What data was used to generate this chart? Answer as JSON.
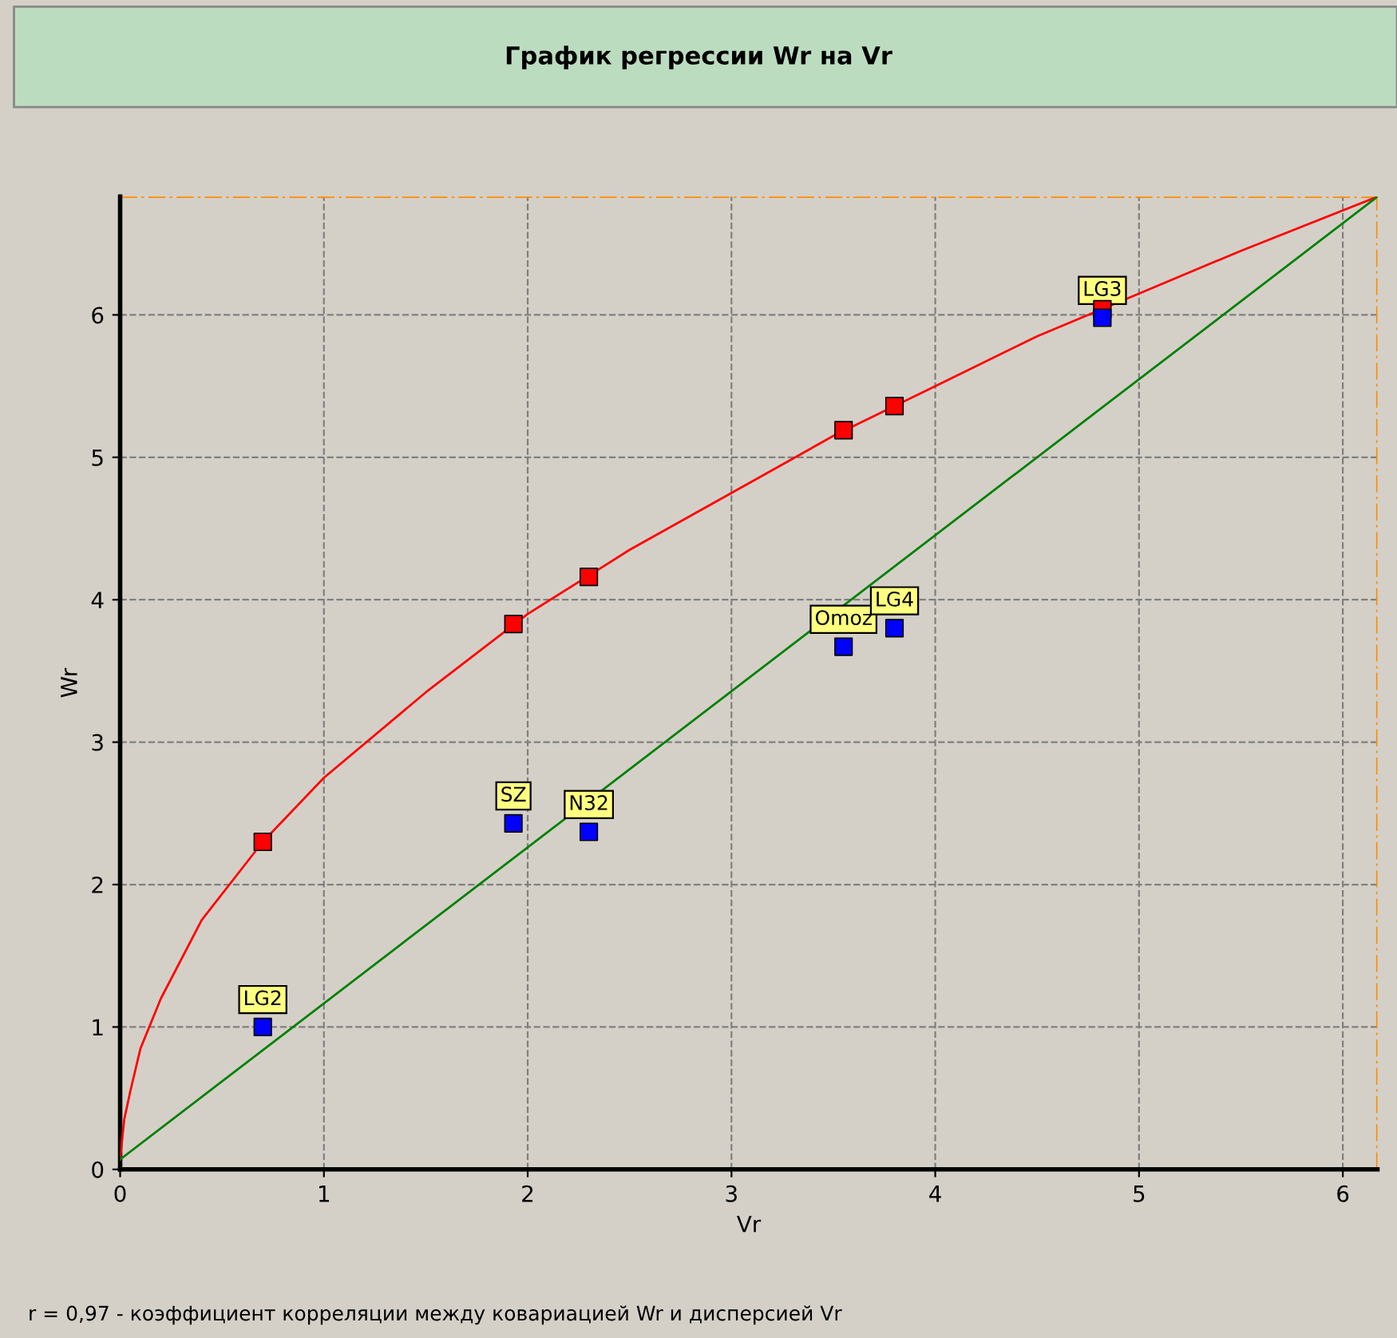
{
  "chart_data": {
    "type": "scatter",
    "title": "График регрессии Wr на Vr",
    "xlabel": "Vr",
    "ylabel": "Wr",
    "xlim": [
      0,
      6.17
    ],
    "ylim": [
      0,
      6.83
    ],
    "xticks": [
      0,
      1,
      2,
      3,
      4,
      5,
      6
    ],
    "yticks": [
      0,
      1,
      2,
      3,
      4,
      5,
      6
    ],
    "grid": true,
    "series": [
      {
        "type": "line",
        "color": "#ff0000",
        "marker": "none",
        "x": [
          0,
          0.02,
          0.05,
          0.1,
          0.2,
          0.4,
          0.7,
          1,
          1.5,
          2,
          2.5,
          3,
          3.5,
          4,
          4.5,
          5,
          5.5,
          6.17
        ],
        "values": [
          0.07,
          0.35,
          0.55,
          0.85,
          1.2,
          1.75,
          2.3,
          2.75,
          3.35,
          3.9,
          4.35,
          4.75,
          5.15,
          5.5,
          5.85,
          6.15,
          6.45,
          6.83
        ]
      },
      {
        "type": "line",
        "color": "#008000",
        "marker": "none",
        "x": [
          0,
          6.17
        ],
        "values": [
          0.07,
          6.83
        ]
      },
      {
        "color": "#ff0000",
        "marker": "square",
        "x": [
          0.7,
          1.93,
          2.3,
          3.55,
          3.8,
          4.82
        ],
        "values": [
          2.3,
          3.83,
          4.16,
          5.19,
          5.36,
          6.04
        ]
      },
      {
        "color": "#0000ff",
        "marker": "square",
        "x": [
          0.7,
          1.93,
          2.3,
          3.55,
          3.8,
          4.82
        ],
        "values": [
          1.0,
          2.43,
          2.37,
          3.67,
          3.8,
          5.98
        ]
      }
    ],
    "ref_lines": [
      {
        "axis": "y",
        "value": 6.83,
        "color": "#ff8c00",
        "line_style": "dashdot"
      },
      {
        "axis": "x",
        "value": 6.17,
        "color": "#ff8c00",
        "line_style": "dashdot"
      }
    ],
    "annotations": [
      {
        "text": "LG2",
        "x": 0.7,
        "y": 1.0
      },
      {
        "text": "SZ",
        "x": 1.93,
        "y": 2.43
      },
      {
        "text": "N32",
        "x": 2.3,
        "y": 2.37
      },
      {
        "text": "Omoz",
        "x": 3.55,
        "y": 3.67
      },
      {
        "text": "LG4",
        "x": 3.8,
        "y": 3.8
      },
      {
        "text": "LG3",
        "x": 4.82,
        "y": 5.98
      },
      "r = 0,97 - коэффициент корреляции между ковариацией Wr и дисперсией Vr"
    ]
  }
}
